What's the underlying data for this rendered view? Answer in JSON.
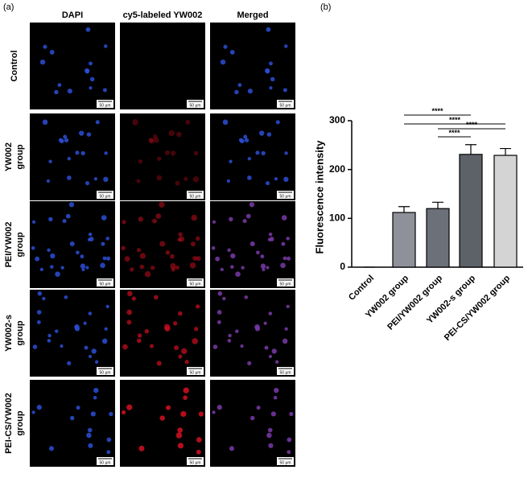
{
  "panel_labels": [
    "(a)",
    "(b)"
  ],
  "microscopy": {
    "columns": [
      "DAPI",
      "cy5-labeled YW002",
      "Merged"
    ],
    "rows": [
      [
        "Control"
      ],
      [
        "YW002",
        "group"
      ],
      [
        "PEI/YW002",
        "group"
      ],
      [
        "YW002-s",
        "group"
      ],
      [
        "PEI-CS/YW002",
        "group"
      ]
    ],
    "scale_bar": "50 μm"
  },
  "chart_data": {
    "type": "bar",
    "y_label": "Fluorescence intensity",
    "categories": [
      "Control",
      "YW002 group",
      "PEI/YW002 group",
      "YW002-s group",
      "PEI-CS/YW002 group"
    ],
    "values": [
      0,
      112,
      120,
      231,
      229
    ],
    "errors": [
      0,
      12,
      13,
      20,
      14
    ],
    "colors": [
      "#9a9ca4",
      "#8e9199",
      "#6c7078",
      "#5d6168",
      "#d4d4d4"
    ],
    "ylim": [
      0,
      300
    ],
    "yticks": [
      0,
      100,
      200,
      300
    ],
    "significance": [
      {
        "between": [
          "YW002 group",
          "YW002-s group"
        ],
        "label": "****"
      },
      {
        "between": [
          "YW002 group",
          "PEI-CS/YW002 group"
        ],
        "label": "****"
      },
      {
        "between": [
          "PEI/YW002 group",
          "PEI-CS/YW002 group"
        ],
        "label": "****"
      },
      {
        "between": [
          "PEI/YW002 group",
          "YW002-s group"
        ],
        "label": "****"
      }
    ]
  }
}
